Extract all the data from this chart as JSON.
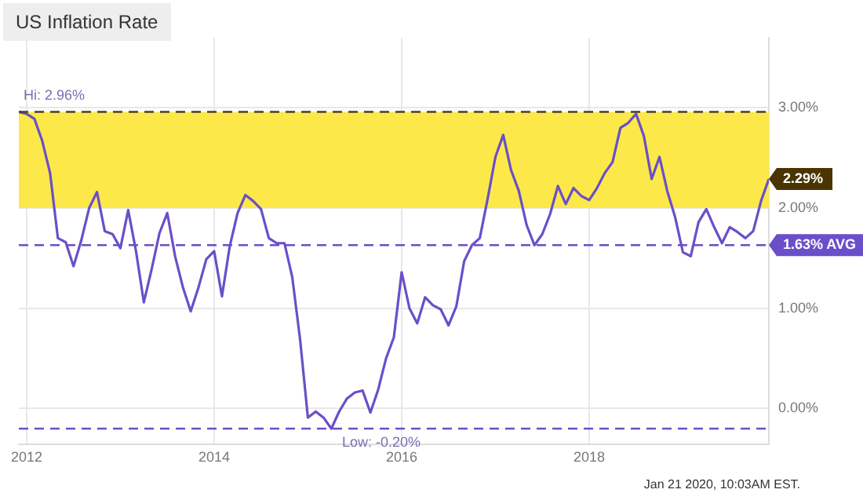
{
  "chart_data": {
    "type": "line",
    "title": "US Inflation Rate",
    "x": [
      "2011-12",
      "2012-01",
      "2012-02",
      "2012-03",
      "2012-04",
      "2012-05",
      "2012-06",
      "2012-07",
      "2012-08",
      "2012-09",
      "2012-10",
      "2012-11",
      "2012-12",
      "2013-01",
      "2013-02",
      "2013-03",
      "2013-04",
      "2013-05",
      "2013-06",
      "2013-07",
      "2013-08",
      "2013-09",
      "2013-10",
      "2013-11",
      "2013-12",
      "2014-01",
      "2014-02",
      "2014-03",
      "2014-04",
      "2014-05",
      "2014-06",
      "2014-07",
      "2014-08",
      "2014-09",
      "2014-10",
      "2014-11",
      "2014-12",
      "2015-01",
      "2015-02",
      "2015-03",
      "2015-04",
      "2015-05",
      "2015-06",
      "2015-07",
      "2015-08",
      "2015-09",
      "2015-10",
      "2015-11",
      "2015-12",
      "2016-01",
      "2016-02",
      "2016-03",
      "2016-04",
      "2016-05",
      "2016-06",
      "2016-07",
      "2016-08",
      "2016-09",
      "2016-10",
      "2016-11",
      "2016-12",
      "2017-01",
      "2017-02",
      "2017-03",
      "2017-04",
      "2017-05",
      "2017-06",
      "2017-07",
      "2017-08",
      "2017-09",
      "2017-10",
      "2017-11",
      "2017-12",
      "2018-01",
      "2018-02",
      "2018-03",
      "2018-04",
      "2018-05",
      "2018-06",
      "2018-07",
      "2018-08",
      "2018-09",
      "2018-10",
      "2018-11",
      "2018-12",
      "2019-01",
      "2019-02",
      "2019-03",
      "2019-04",
      "2019-05",
      "2019-06",
      "2019-07",
      "2019-08",
      "2019-09",
      "2019-10",
      "2019-11",
      "2019-12"
    ],
    "series": [
      {
        "color": "#6a4fc9",
        "values": [
          2.96,
          2.94,
          2.89,
          2.67,
          2.35,
          1.7,
          1.66,
          1.42,
          1.68,
          2.0,
          2.16,
          1.77,
          1.74,
          1.6,
          1.98,
          1.57,
          1.06,
          1.39,
          1.75,
          1.95,
          1.52,
          1.21,
          0.97,
          1.21,
          1.49,
          1.57,
          1.12,
          1.62,
          1.95,
          2.13,
          2.07,
          1.99,
          1.7,
          1.65,
          1.65,
          1.31,
          0.69,
          -0.09,
          -0.03,
          -0.09,
          -0.2,
          -0.03,
          0.1,
          0.16,
          0.18,
          -0.04,
          0.19,
          0.5,
          0.71,
          1.36,
          1.0,
          0.85,
          1.11,
          1.03,
          0.99,
          0.83,
          1.02,
          1.47,
          1.63,
          1.7,
          2.09,
          2.51,
          2.73,
          2.38,
          2.17,
          1.83,
          1.63,
          1.74,
          1.94,
          2.22,
          2.04,
          2.2,
          2.12,
          2.08,
          2.2,
          2.35,
          2.46,
          2.8,
          2.85,
          2.94,
          2.72,
          2.29,
          2.51,
          2.17,
          1.91,
          1.56,
          1.52,
          1.86,
          1.99,
          1.81,
          1.65,
          1.81,
          1.76,
          1.7,
          1.77,
          2.07,
          2.29
        ]
      }
    ],
    "xlim": [
      "2011-12",
      "2019-12"
    ],
    "xticks": [
      "2012",
      "2014",
      "2016",
      "2018"
    ],
    "ylim": [
      -0.36,
      3.7
    ],
    "yticks": [
      {
        "value": 0,
        "label": "0.00%"
      },
      {
        "value": 1,
        "label": "1.00%"
      },
      {
        "value": 2,
        "label": "2.00%"
      },
      {
        "value": 3,
        "label": "3.00%"
      }
    ],
    "grid": true,
    "legend": false,
    "marker": "none",
    "line_style": "solid",
    "bands": [
      {
        "axis": "y",
        "from": 2.0,
        "to": 2.96,
        "color": "#fde84a"
      }
    ],
    "ref_lines": [
      {
        "axis": "y",
        "value": 2.96,
        "label": "Hi: 2.96%",
        "color": "#4a4028",
        "line_style": "dashed"
      },
      {
        "axis": "y",
        "value": 1.63,
        "label": "1.63% AVG",
        "color": "#6a4fc9",
        "line_style": "dashed"
      },
      {
        "axis": "y",
        "value": -0.2,
        "label": "Low: -0.20%",
        "color": "#6a4fc9",
        "line_style": "dashed"
      }
    ],
    "annotations": [
      {
        "text": "2.29%",
        "x": "2019-12",
        "y": 2.29
      },
      "Jan 21 2020, 10:03AM EST."
    ]
  }
}
